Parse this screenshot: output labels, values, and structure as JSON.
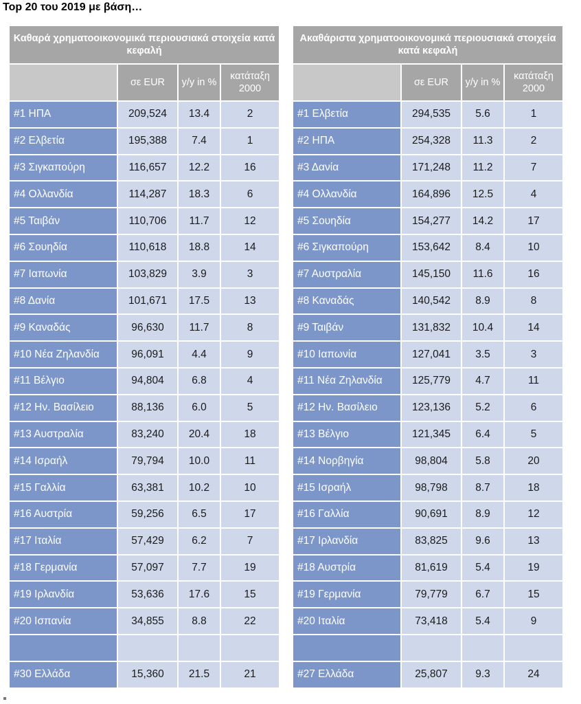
{
  "page_title": "Top 20 του 2019 με βάση…",
  "left": {
    "header": "Καθαρά χρηματοοικονομικά περιουσιακά στοιχεία κατά κεφαλή",
    "columns": [
      "",
      "σε EUR",
      "y/y in %",
      "κατάταξη 2000"
    ],
    "rows": [
      [
        "#1 ΗΠΑ",
        "209,524",
        "13.4",
        "2"
      ],
      [
        "#2 Ελβετία",
        "195,388",
        "7.4",
        "1"
      ],
      [
        "#3 Σιγκαπούρη",
        "116,657",
        "12.2",
        "16"
      ],
      [
        "#4 Ολλανδία",
        "114,287",
        "18.3",
        "6"
      ],
      [
        "#5 Ταιβάν",
        "110,706",
        "11.7",
        "12"
      ],
      [
        "#6 Σουηδία",
        "110,618",
        "18.8",
        "14"
      ],
      [
        "#7 Ιαπωνία",
        "103,829",
        "3.9",
        "3"
      ],
      [
        "#8 Δανία",
        "101,671",
        "17.5",
        "13"
      ],
      [
        "#9 Καναδάς",
        "96,630",
        "11.7",
        "8"
      ],
      [
        "#10 Νέα Ζηλανδία",
        "96,091",
        "4.4",
        "9"
      ],
      [
        "#11 Βέλγιο",
        "94,804",
        "6.8",
        "4"
      ],
      [
        "#12 Ην. Βασίλειο",
        "88,136",
        "6.0",
        "5"
      ],
      [
        "#13 Αυστραλία",
        "83,240",
        "20.4",
        "18"
      ],
      [
        "#14 Ισραήλ",
        "79,794",
        "10.0",
        "11"
      ],
      [
        "#15 Γαλλία",
        "63,381",
        "10.2",
        "10"
      ],
      [
        "#16 Αυστρία",
        "59,256",
        "6.5",
        "17"
      ],
      [
        "#17 Ιταλία",
        "57,429",
        "6.2",
        "7"
      ],
      [
        "#18 Γερμανία",
        "57,097",
        "7.7",
        "19"
      ],
      [
        "#19 Ιρλανδία",
        "53,636",
        "17.6",
        "15"
      ],
      [
        "#20 Ισπανία",
        "34,855",
        "8.8",
        "22"
      ],
      [
        "",
        "",
        "",
        ""
      ],
      [
        "#30 Ελλάδα",
        "15,360",
        "21.5",
        "21"
      ]
    ]
  },
  "right": {
    "header": "Ακαθάριστα χρηματοοικονομικά περιουσιακά στοιχεία κατά κεφαλή",
    "columns": [
      "",
      "σε EUR",
      "y/y in %",
      "κατάταξη 2000"
    ],
    "rows": [
      [
        "#1 Ελβετία",
        "294,535",
        "5.6",
        "1"
      ],
      [
        "#2 ΗΠΑ",
        "254,328",
        "11.3",
        "2"
      ],
      [
        "#3 Δανία",
        "171,248",
        "11.2",
        "7"
      ],
      [
        "#4 Ολλανδία",
        "164,896",
        "12.5",
        "4"
      ],
      [
        "#5 Σουηδία",
        "154,277",
        "14.2",
        "17"
      ],
      [
        "#6 Σιγκαπούρη",
        "153,642",
        "8.4",
        "10"
      ],
      [
        "#7 Αυστραλία",
        "145,150",
        "11.6",
        "16"
      ],
      [
        "#8 Καναδάς",
        "140,542",
        "8.9",
        "8"
      ],
      [
        "#9 Ταιβάν",
        "131,832",
        "10.4",
        "14"
      ],
      [
        "#10 Ιαπωνία",
        "127,041",
        "3.5",
        "3"
      ],
      [
        "#11 Νέα Ζηλανδία",
        "125,779",
        "4.7",
        "11"
      ],
      [
        "#12 Ην. Βασίλειο",
        "123,136",
        "5.2",
        "6"
      ],
      [
        "#13 Βέλγιο",
        "121,345",
        "6.4",
        "5"
      ],
      [
        "#14 Νορβηγία",
        "98,804",
        "5.8",
        "20"
      ],
      [
        "#15 Ισραήλ",
        "98,798",
        "8.7",
        "18"
      ],
      [
        "#16 Γαλλία",
        "90,691",
        "8.9",
        "12"
      ],
      [
        "#17 Ιρλανδία",
        "83,825",
        "9.6",
        "13"
      ],
      [
        "#18 Αυστρία",
        "81,619",
        "5.4",
        "19"
      ],
      [
        "#19 Γερμανία",
        "79,779",
        "6.7",
        "15"
      ],
      [
        "#20 Ιταλία",
        "73,418",
        "5.4",
        "9"
      ],
      [
        "",
        "",
        "",
        ""
      ],
      [
        "#27 Ελλάδα",
        "25,807",
        "9.3",
        "24"
      ]
    ]
  }
}
